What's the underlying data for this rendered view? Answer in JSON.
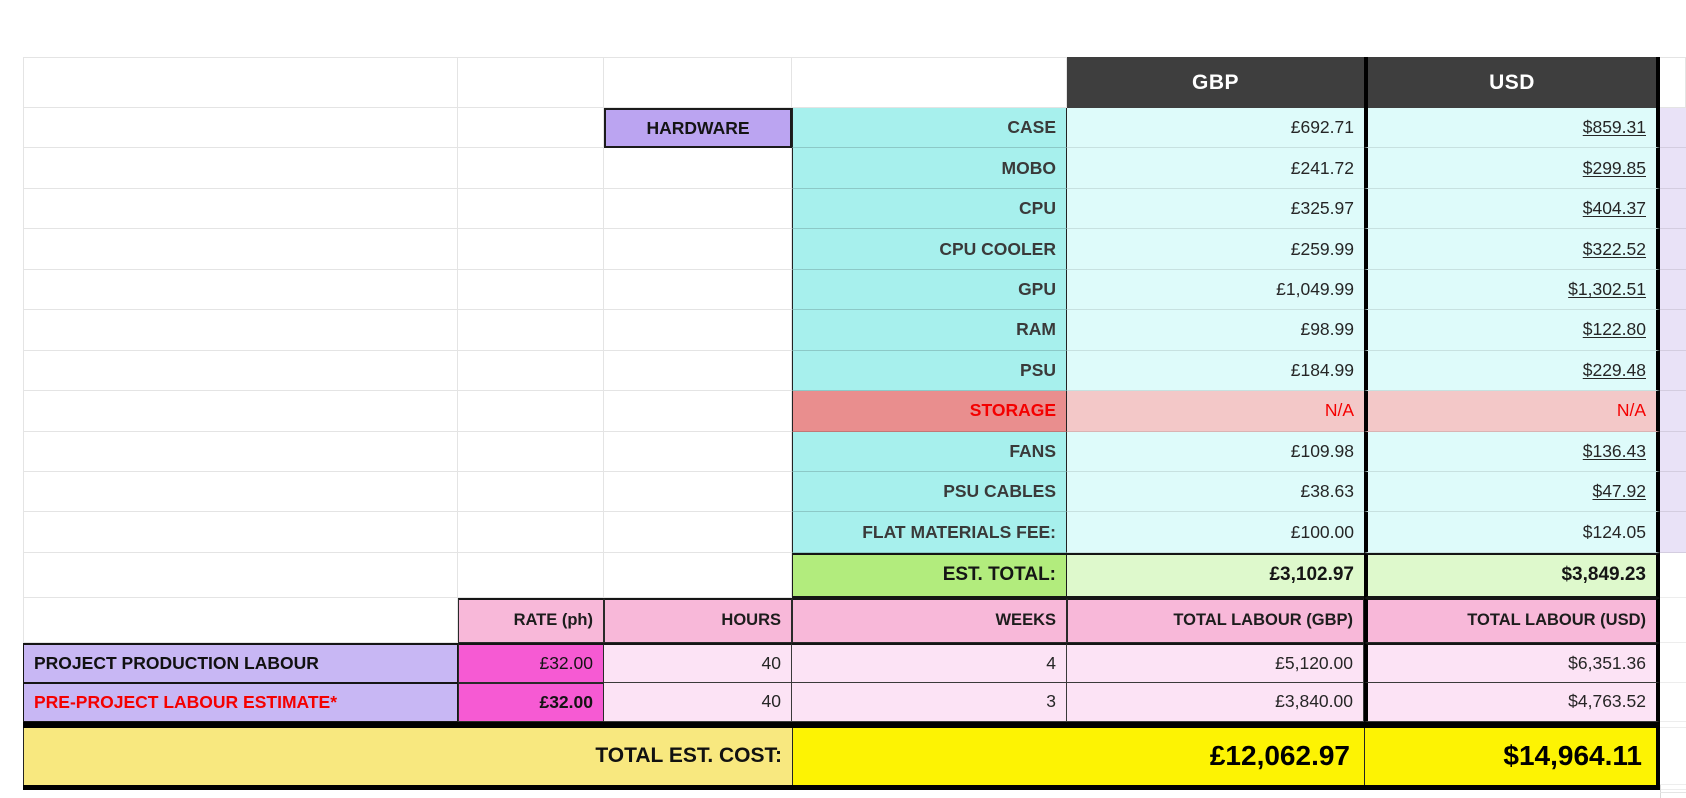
{
  "currency_headers": {
    "gbp": "GBP",
    "usd": "USD"
  },
  "hardware": {
    "section_label": "HARDWARE",
    "items": [
      {
        "label": "CASE",
        "gbp": "£692.71",
        "usd": "$859.31",
        "usd_underline": true,
        "status": "ok"
      },
      {
        "label": "MOBO",
        "gbp": "£241.72",
        "usd": "$299.85",
        "usd_underline": true,
        "status": "ok"
      },
      {
        "label": "CPU",
        "gbp": "£325.97",
        "usd": "$404.37",
        "usd_underline": true,
        "status": "ok"
      },
      {
        "label": "CPU COOLER",
        "gbp": "£259.99",
        "usd": "$322.52",
        "usd_underline": true,
        "status": "ok"
      },
      {
        "label": "GPU",
        "gbp": "£1,049.99",
        "usd": "$1,302.51",
        "usd_underline": true,
        "status": "ok"
      },
      {
        "label": "RAM",
        "gbp": "£98.99",
        "usd": "$122.80",
        "usd_underline": true,
        "status": "ok"
      },
      {
        "label": "PSU",
        "gbp": "£184.99",
        "usd": "$229.48",
        "usd_underline": true,
        "status": "ok"
      },
      {
        "label": "STORAGE",
        "gbp": "N/A",
        "usd": "N/A",
        "usd_underline": false,
        "status": "na"
      },
      {
        "label": "FANS",
        "gbp": "£109.98",
        "usd": "$136.43",
        "usd_underline": true,
        "status": "ok"
      },
      {
        "label": "PSU CABLES",
        "gbp": "£38.63",
        "usd": "$47.92",
        "usd_underline": true,
        "status": "ok"
      },
      {
        "label": "FLAT MATERIALS FEE:",
        "gbp": "£100.00",
        "usd": "$124.05",
        "usd_underline": false,
        "status": "ok"
      }
    ],
    "est_total": {
      "label": "EST. TOTAL:",
      "gbp": "£3,102.97",
      "usd": "$3,849.23"
    }
  },
  "labour": {
    "headers": {
      "rate": "RATE (ph)",
      "hours": "HOURS",
      "weeks": "WEEKS",
      "total_gbp": "TOTAL LABOUR (GBP)",
      "total_usd": "TOTAL LABOUR (USD)"
    },
    "rows": [
      {
        "label": "PROJECT PRODUCTION LABOUR",
        "rate": "£32.00",
        "hours": "40",
        "weeks": "4",
        "total_gbp": "£5,120.00",
        "total_usd": "$6,351.36",
        "emphasis": "normal",
        "rate_bold": false
      },
      {
        "label": "PRE-PROJECT LABOUR ESTIMATE*",
        "rate": "£32.00",
        "hours": "40",
        "weeks": "3",
        "total_gbp": "£3,840.00",
        "total_usd": "$4,763.52",
        "emphasis": "red",
        "rate_bold": true
      }
    ]
  },
  "grand_total": {
    "label": "TOTAL EST. COST:",
    "gbp": "£12,062.97",
    "usd": "$14,964.11"
  },
  "colors": {
    "header_dark": "#3e3e3e",
    "hardware_purple": "#bba4f1",
    "label_cyan": "#a7f0ed",
    "value_cyan": "#defbfa",
    "storage_red_label": "#e98e8e",
    "storage_red_value": "#f3c8c8",
    "alert_red_text": "#f40000",
    "est_total_green_label": "#b2ec7d",
    "est_total_green_value": "#def9cc",
    "labour_header_pink": "#f8b8d9",
    "labour_label_purple": "#c8b7f4",
    "rate_magenta": "#f65ad3",
    "labour_value_pink": "#fce3f5",
    "grand_total_label_yellow": "#f8e87f",
    "grand_total_value_yellow": "#fdf303",
    "right_strip_lavender": "#e9e2f7"
  }
}
